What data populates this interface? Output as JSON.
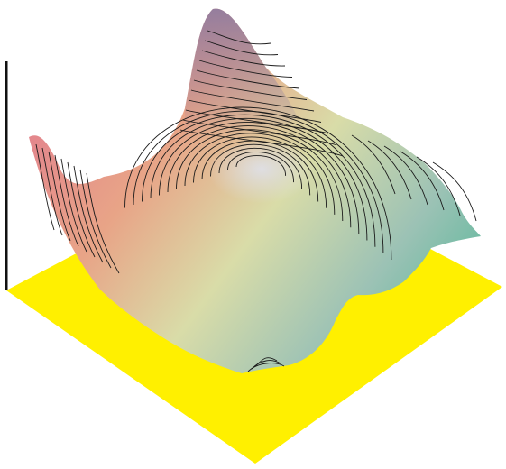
{
  "chart_data": {
    "type": "surface3d",
    "title": "",
    "xlabel": "",
    "ylabel": "",
    "zlabel": "",
    "base_color": "#FFF000",
    "colormap": [
      "#E27E8E",
      "#E8A487",
      "#F3E6A6",
      "#A7C8C3",
      "#5DB89C",
      "#8C7BA0"
    ],
    "contour_color": "#1a1a1a",
    "grid": false,
    "legend": "none",
    "peaks": [
      {
        "id": "back-peak",
        "level": 1.0
      },
      {
        "id": "central-peak",
        "level": 0.62
      },
      {
        "id": "left-ridge",
        "level": 0.55
      },
      {
        "id": "right-shoulder",
        "level": 0.4
      }
    ],
    "contour_levels": 14
  }
}
